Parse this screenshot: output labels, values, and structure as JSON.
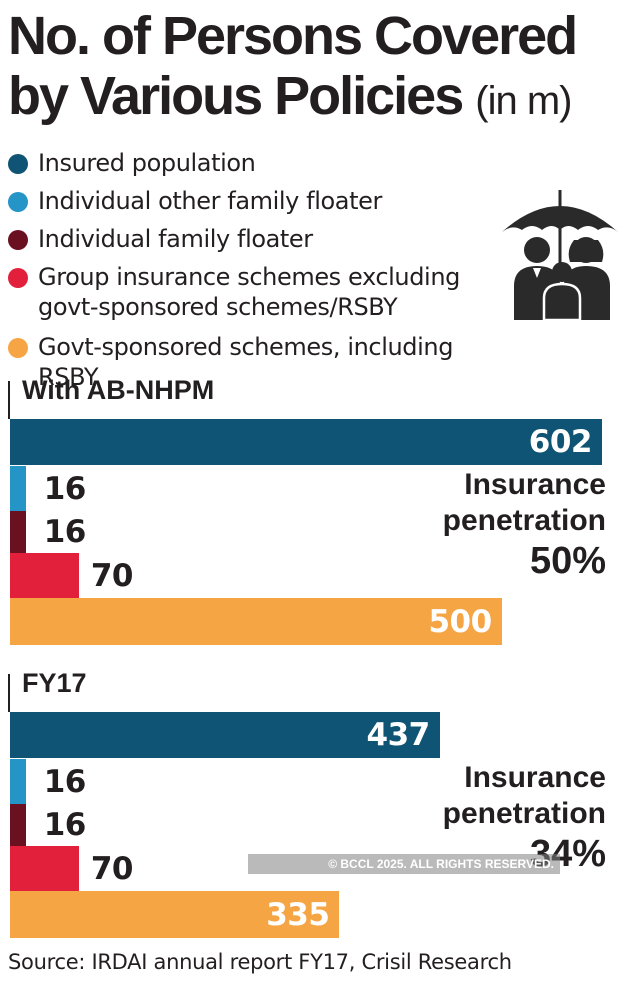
{
  "chart_data": {
    "type": "bar",
    "title": "No. of Persons Covered by Various Policies",
    "unit": "(in m)",
    "series": [
      {
        "name": "Insured population",
        "color": "#0f5474"
      },
      {
        "name": "Individual other family floater",
        "color": "#2594c6"
      },
      {
        "name": "Individual family floater",
        "color": "#6b1020"
      },
      {
        "name": "Group insurance schemes excluding govt-sponsored schemes/RSBY",
        "color": "#e2203c"
      },
      {
        "name": "Govt-sponsored schemes, including RSBY",
        "color": "#f6a544"
      }
    ],
    "panels": [
      {
        "name": "With AB-NHPM",
        "values": [
          602,
          16,
          16,
          70,
          500
        ],
        "penetration_label": "Insurance penetration",
        "penetration": "50%"
      },
      {
        "name": "FY17",
        "values": [
          437,
          16,
          16,
          70,
          335
        ],
        "penetration_label": "Insurance penetration",
        "penetration": "34%"
      }
    ],
    "xlim": [
      0,
      602
    ]
  },
  "legend_lines": [
    [
      "Insured population"
    ],
    [
      "Individual other family floater"
    ],
    [
      "Individual family floater"
    ],
    [
      "Group insurance schemes excluding",
      "govt-sponsored schemes/RSBY"
    ],
    [
      "Govt-sponsored schemes, including RSBY"
    ]
  ],
  "title_lines": [
    "No. of Persons Covered",
    "by Various Policies"
  ],
  "watermark": "© BCCL 2025. ALL RIGHTS RESERVED.",
  "source": "Source: IRDAI annual report FY17, Crisil Research",
  "icon": "family-umbrella-icon"
}
